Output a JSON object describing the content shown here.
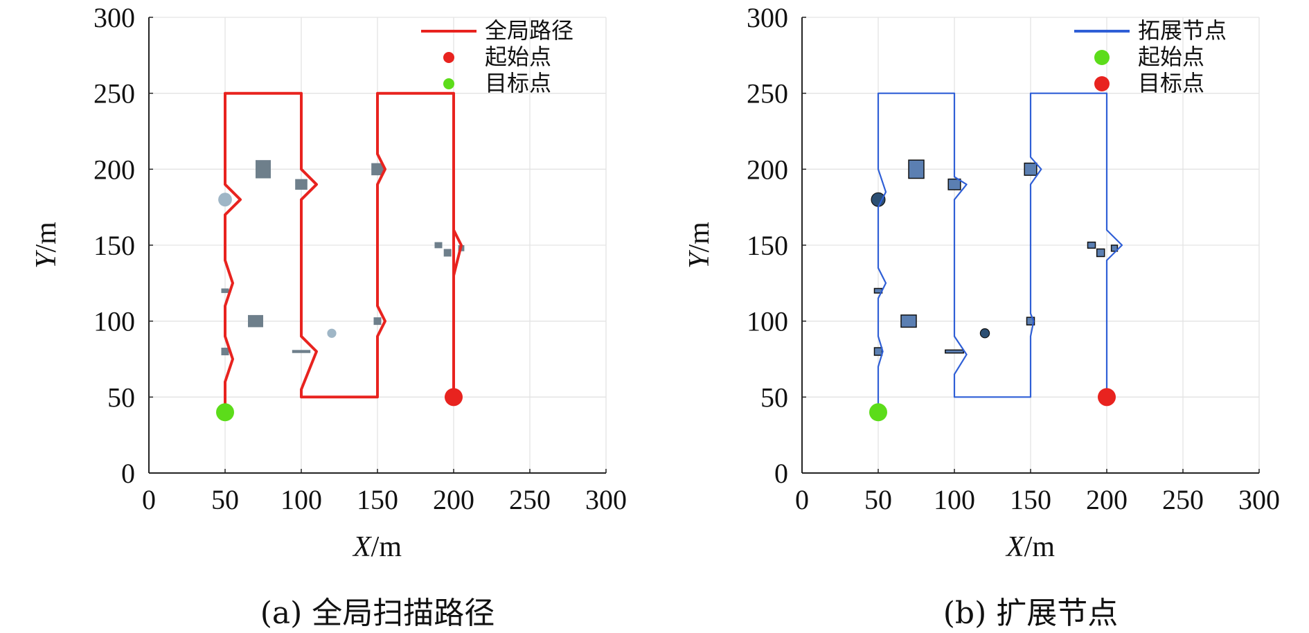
{
  "chart_data": [
    {
      "type": "line",
      "caption": "(a) 全局扫描路径",
      "xlabel_var": "X",
      "xlabel_unit": "/m",
      "ylabel_var": "Y",
      "ylabel_unit": "/m",
      "xlim": [
        0,
        300
      ],
      "ylim": [
        0,
        300
      ],
      "xticks": [
        "0",
        "50",
        "100",
        "150",
        "200",
        "250",
        "300"
      ],
      "yticks": [
        "0",
        "50",
        "100",
        "150",
        "200",
        "250",
        "300"
      ],
      "grid": true,
      "legend_position": "top-right",
      "legend": [
        {
          "label": "全局路径",
          "kind": "line",
          "color": "#e8231f"
        },
        {
          "label": "起始点",
          "kind": "point",
          "color": "#e8231f"
        },
        {
          "label": "目标点",
          "kind": "point",
          "color": "#5cdc1a"
        }
      ],
      "path_color": "#e8231f",
      "path": [
        [
          200,
          50
        ],
        [
          200,
          160
        ],
        [
          205,
          150
        ],
        [
          200,
          130
        ],
        [
          200,
          100
        ],
        [
          200,
          250
        ],
        [
          150,
          250
        ],
        [
          150,
          210
        ],
        [
          155,
          200
        ],
        [
          150,
          190
        ],
        [
          150,
          110
        ],
        [
          155,
          100
        ],
        [
          150,
          90
        ],
        [
          150,
          50
        ],
        [
          100,
          50
        ],
        [
          100,
          55
        ],
        [
          110,
          80
        ],
        [
          100,
          90
        ],
        [
          100,
          180
        ],
        [
          110,
          190
        ],
        [
          100,
          200
        ],
        [
          100,
          250
        ],
        [
          50,
          250
        ],
        [
          50,
          190
        ],
        [
          60,
          180
        ],
        [
          50,
          170
        ],
        [
          50,
          140
        ],
        [
          55,
          125
        ],
        [
          50,
          110
        ],
        [
          50,
          90
        ],
        [
          55,
          75
        ],
        [
          50,
          60
        ],
        [
          50,
          40
        ]
      ],
      "start": {
        "x": 200,
        "y": 50,
        "color": "#e8231f"
      },
      "goal": {
        "x": 50,
        "y": 40,
        "color": "#5cdc1a"
      },
      "obstacles": [
        {
          "shape": "rect",
          "x": 75,
          "y": 200,
          "w": 10,
          "h": 12
        },
        {
          "shape": "rect",
          "x": 100,
          "y": 190,
          "w": 8,
          "h": 7
        },
        {
          "shape": "rect",
          "x": 150,
          "y": 200,
          "w": 8,
          "h": 8
        },
        {
          "shape": "rect",
          "x": 70,
          "y": 100,
          "w": 10,
          "h": 8
        },
        {
          "shape": "rect",
          "x": 150,
          "y": 100,
          "w": 5,
          "h": 5
        },
        {
          "shape": "rect",
          "x": 50,
          "y": 120,
          "w": 5,
          "h": 3
        },
        {
          "shape": "rect",
          "x": 50,
          "y": 80,
          "w": 5,
          "h": 5
        },
        {
          "shape": "rect",
          "x": 100,
          "y": 80,
          "w": 12,
          "h": 2
        },
        {
          "shape": "rect",
          "x": 190,
          "y": 150,
          "w": 5,
          "h": 4
        },
        {
          "shape": "rect",
          "x": 196,
          "y": 145,
          "w": 5,
          "h": 5
        },
        {
          "shape": "rect",
          "x": 205,
          "y": 148,
          "w": 4,
          "h": 4
        },
        {
          "shape": "circle",
          "x": 50,
          "y": 180,
          "r": 4.5
        },
        {
          "shape": "circle",
          "x": 120,
          "y": 92,
          "r": 3
        }
      ]
    },
    {
      "type": "line",
      "caption": "(b) 扩展节点",
      "xlabel_var": "X",
      "xlabel_unit": "/m",
      "ylabel_var": "Y",
      "ylabel_unit": "/m",
      "xlim": [
        0,
        300
      ],
      "ylim": [
        0,
        300
      ],
      "xticks": [
        "0",
        "50",
        "100",
        "150",
        "200",
        "250",
        "300"
      ],
      "yticks": [
        "0",
        "50",
        "100",
        "150",
        "200",
        "250",
        "300"
      ],
      "grid": true,
      "legend_position": "top-right",
      "legend": [
        {
          "label": "拓展节点",
          "kind": "line",
          "color": "#2f5fd6"
        },
        {
          "label": "起始点",
          "kind": "point",
          "color": "#5cdc1a"
        },
        {
          "label": "目标点",
          "kind": "point",
          "color": "#e8231f"
        }
      ],
      "path_color": "#2f5fd6",
      "path": [
        [
          200,
          50
        ],
        [
          200,
          140
        ],
        [
          210,
          150
        ],
        [
          200,
          160
        ],
        [
          200,
          250
        ],
        [
          150,
          250
        ],
        [
          150,
          208
        ],
        [
          157,
          200
        ],
        [
          150,
          190
        ],
        [
          150,
          105
        ],
        [
          152,
          100
        ],
        [
          150,
          90
        ],
        [
          150,
          50
        ],
        [
          100,
          50
        ],
        [
          100,
          65
        ],
        [
          108,
          78
        ],
        [
          100,
          90
        ],
        [
          100,
          180
        ],
        [
          108,
          190
        ],
        [
          100,
          195
        ],
        [
          100,
          250
        ],
        [
          50,
          250
        ],
        [
          50,
          200
        ],
        [
          55,
          185
        ],
        [
          50,
          175
        ],
        [
          50,
          135
        ],
        [
          55,
          125
        ],
        [
          50,
          115
        ],
        [
          50,
          90
        ],
        [
          53,
          80
        ],
        [
          50,
          70
        ],
        [
          50,
          40
        ]
      ],
      "start": {
        "x": 50,
        "y": 40,
        "color": "#5cdc1a"
      },
      "goal": {
        "x": 200,
        "y": 50,
        "color": "#e8231f"
      },
      "obstacles": [
        {
          "shape": "rect",
          "x": 75,
          "y": 200,
          "w": 10,
          "h": 12
        },
        {
          "shape": "rect",
          "x": 100,
          "y": 190,
          "w": 8,
          "h": 7
        },
        {
          "shape": "rect",
          "x": 150,
          "y": 200,
          "w": 8,
          "h": 8
        },
        {
          "shape": "rect",
          "x": 70,
          "y": 100,
          "w": 10,
          "h": 8
        },
        {
          "shape": "rect",
          "x": 150,
          "y": 100,
          "w": 5,
          "h": 5
        },
        {
          "shape": "rect",
          "x": 50,
          "y": 120,
          "w": 5,
          "h": 3
        },
        {
          "shape": "rect",
          "x": 50,
          "y": 80,
          "w": 5,
          "h": 5
        },
        {
          "shape": "rect",
          "x": 100,
          "y": 80,
          "w": 12,
          "h": 2
        },
        {
          "shape": "rect",
          "x": 190,
          "y": 150,
          "w": 5,
          "h": 4
        },
        {
          "shape": "rect",
          "x": 196,
          "y": 145,
          "w": 5,
          "h": 5
        },
        {
          "shape": "rect",
          "x": 205,
          "y": 148,
          "w": 4,
          "h": 4
        },
        {
          "shape": "circle",
          "x": 50,
          "y": 180,
          "r": 4.5
        },
        {
          "shape": "circle",
          "x": 120,
          "y": 92,
          "r": 3
        }
      ]
    }
  ]
}
